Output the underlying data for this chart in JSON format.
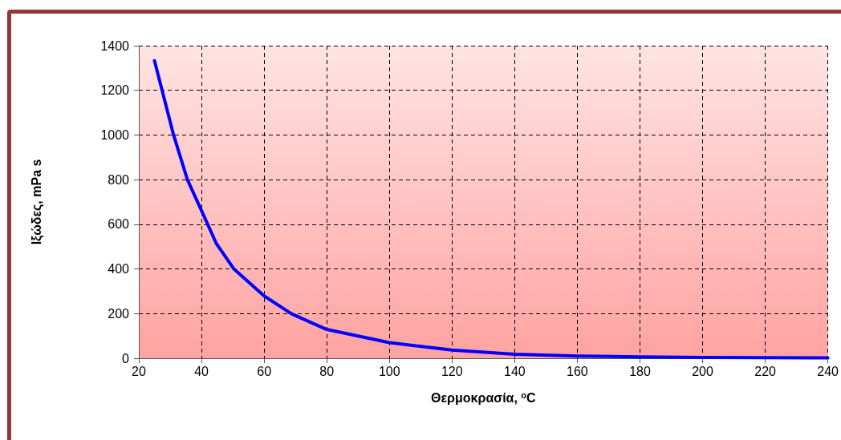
{
  "chart_data": {
    "type": "line",
    "xlabel": "Θερμοκρασία, $^{o}$C",
    "ylabel": "Ιξώδες, mPa s",
    "x": [
      25,
      31.1,
      35.5,
      40,
      44.7,
      50.4,
      60,
      68.8,
      80,
      100,
      120,
      140,
      160,
      180,
      200,
      220,
      240
    ],
    "series": [
      {
        "color": "#0000ff",
        "values": [
          1333,
          1000,
          800,
          662,
          515,
          399,
          279,
          199,
          129,
          70,
          37,
          18,
          10,
          6,
          4,
          3,
          2
        ]
      }
    ],
    "xlim": [
      20,
      240
    ],
    "xticks": [
      20,
      40,
      60,
      80,
      100,
      120,
      140,
      160,
      180,
      200,
      220,
      240
    ],
    "ylim": [
      0,
      1400
    ],
    "yticks": [
      0,
      200,
      400,
      600,
      800,
      1000,
      1200,
      1400
    ],
    "grid": true,
    "marker": "none",
    "line_style": "solid"
  }
}
